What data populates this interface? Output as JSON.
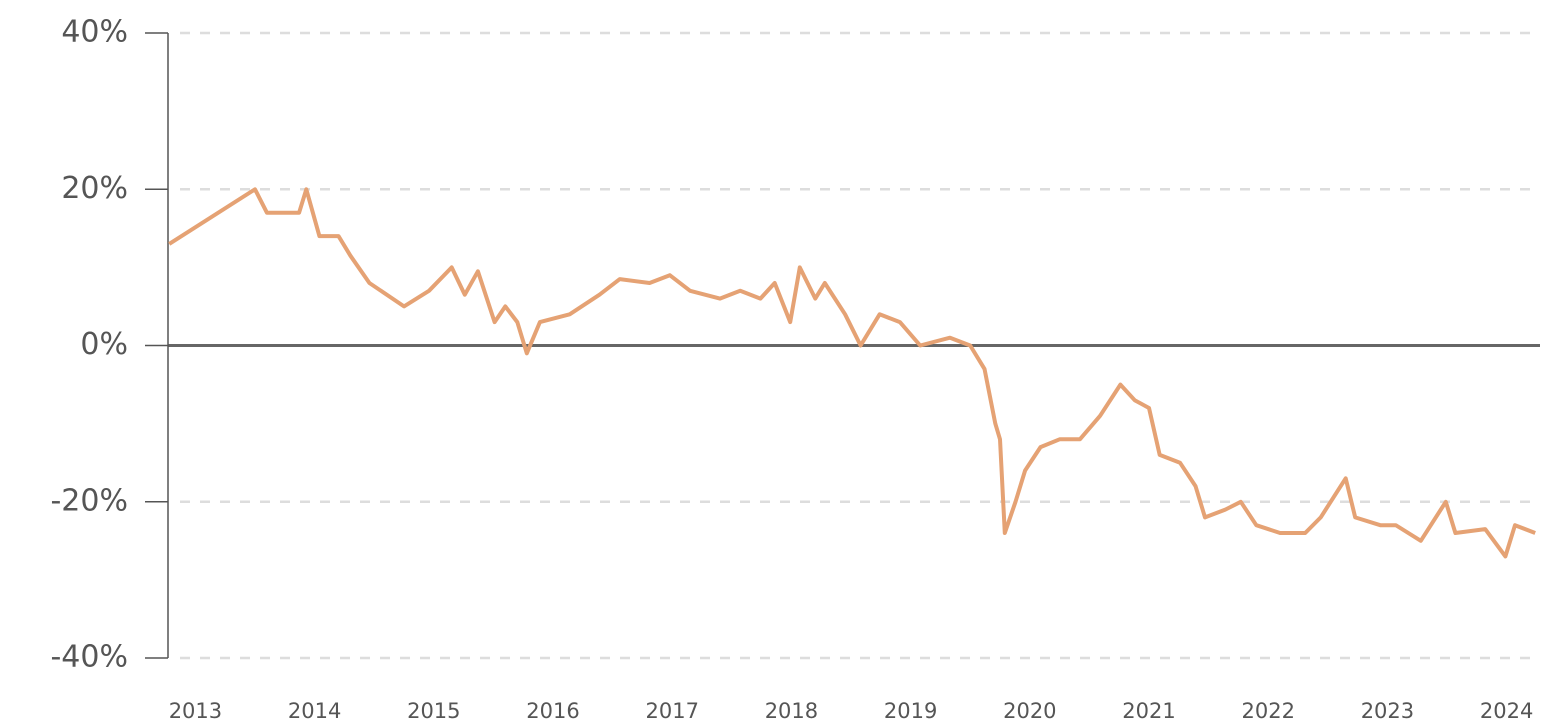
{
  "chart_data": {
    "type": "line",
    "x": [
      2012.78,
      2013.5,
      2013.6,
      2013.87,
      2013.93,
      2014.04,
      2014.2,
      2014.3,
      2014.46,
      2014.75,
      2014.96,
      2015.15,
      2015.26,
      2015.37,
      2015.51,
      2015.6,
      2015.7,
      2015.78,
      2015.89,
      2016.14,
      2016.39,
      2016.56,
      2016.81,
      2016.98,
      2017.15,
      2017.4,
      2017.57,
      2017.74,
      2017.86,
      2017.99,
      2018.07,
      2018.2,
      2018.28,
      2018.45,
      2018.58,
      2018.74,
      2018.91,
      2019.08,
      2019.33,
      2019.5,
      2019.62,
      2019.71,
      2019.75,
      2019.79,
      2019.88,
      2019.96,
      2020.09,
      2020.25,
      2020.42,
      2020.59,
      2020.76,
      2020.88,
      2021.0,
      2021.09,
      2021.26,
      2021.39,
      2021.47,
      2021.64,
      2021.77,
      2021.9,
      2022.1,
      2022.31,
      2022.44,
      2022.65,
      2022.73,
      2022.94,
      2023.07,
      2023.28,
      2023.49,
      2023.57,
      2023.82,
      2023.99,
      2024.07,
      2024.24
    ],
    "series": [
      {
        "color": "#e5a274",
        "values": [
          13,
          20,
          17,
          17,
          20,
          14,
          14,
          11.5,
          8,
          5,
          7,
          10,
          6.5,
          9.5,
          3,
          5,
          3,
          -1,
          3,
          4,
          6.5,
          8.5,
          8,
          9,
          7,
          6,
          7,
          6,
          8,
          3,
          10,
          6,
          8,
          4,
          0,
          4,
          3,
          0,
          1,
          0,
          -3,
          -10,
          -12,
          -24,
          -20,
          -16,
          -13,
          -12,
          -12,
          -9,
          -5,
          -7,
          -8,
          -14,
          -15,
          -18,
          -22,
          -21,
          -20,
          -23,
          -24,
          -24,
          -22,
          -17,
          -22,
          -23,
          -23,
          -25,
          -20,
          -24,
          -23.5,
          -27,
          -23,
          -24
        ]
      }
    ],
    "xlim": [
      2012.77,
      2024.28
    ],
    "xticks": [
      2013,
      2014,
      2015,
      2016,
      2017,
      2018,
      2019,
      2020,
      2021,
      2022,
      2023,
      2024
    ],
    "ylim": [
      -40,
      40
    ],
    "yticks": [
      {
        "value": -40,
        "label": "-40%"
      },
      {
        "value": -20,
        "label": "-20%"
      },
      {
        "value": 0,
        "label": "0%"
      },
      {
        "value": 20,
        "label": "20%"
      },
      {
        "value": 40,
        "label": "40%"
      }
    ],
    "grid": true
  }
}
